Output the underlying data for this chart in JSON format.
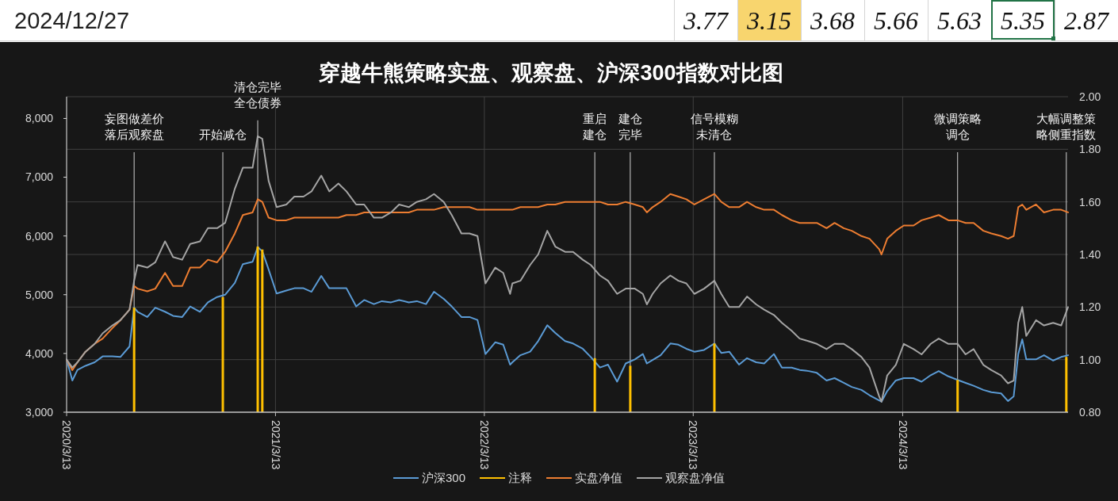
{
  "chart_data": [
    {
      "type": "other",
      "annotations": [
        "2024/12/27",
        "3.77",
        "3.15",
        "3.68",
        "5.66",
        "5.63",
        "5.35",
        "2.87"
      ]
    },
    {
      "type": "line",
      "title": "穿越牛熊策略实盘、观察盘、沪深300指数对比图",
      "x": [
        "2020-03-13",
        "2020-03-23",
        "2020-04-01",
        "2020-04-15",
        "2020-05-01",
        "2020-05-15",
        "2020-06-01",
        "2020-06-15",
        "2020-07-01",
        "2020-07-09",
        "2020-07-15",
        "2020-08-01",
        "2020-08-15",
        "2020-09-01",
        "2020-09-15",
        "2020-10-01",
        "2020-10-15",
        "2020-11-01",
        "2020-11-15",
        "2020-12-01",
        "2020-12-15",
        "2021-01-01",
        "2021-01-15",
        "2021-02-01",
        "2021-02-10",
        "2021-02-18",
        "2021-03-01",
        "2021-03-15",
        "2021-04-01",
        "2021-04-15",
        "2021-05-01",
        "2021-05-15",
        "2021-06-01",
        "2021-06-15",
        "2021-07-01",
        "2021-07-15",
        "2021-08-01",
        "2021-08-15",
        "2021-09-01",
        "2021-09-15",
        "2021-10-01",
        "2021-10-15",
        "2021-11-01",
        "2021-11-15",
        "2021-12-01",
        "2021-12-15",
        "2022-01-01",
        "2022-01-15",
        "2022-02-01",
        "2022-02-15",
        "2022-03-01",
        "2022-03-15",
        "2022-04-01",
        "2022-04-15",
        "2022-04-27",
        "2022-05-01",
        "2022-05-15",
        "2022-06-01",
        "2022-06-15",
        "2022-07-01",
        "2022-07-15",
        "2022-08-01",
        "2022-08-15",
        "2022-09-01",
        "2022-09-15",
        "2022-10-01",
        "2022-10-15",
        "2022-10-31",
        "2022-11-15",
        "2022-12-01",
        "2022-12-15",
        "2022-12-22",
        "2023-01-01",
        "2023-01-15",
        "2023-02-01",
        "2023-02-15",
        "2023-03-01",
        "2023-03-15",
        "2023-04-01",
        "2023-04-19",
        "2023-05-01",
        "2023-05-15",
        "2023-06-01",
        "2023-06-15",
        "2023-07-01",
        "2023-07-15",
        "2023-08-01",
        "2023-08-15",
        "2023-09-01",
        "2023-09-15",
        "2023-10-01",
        "2023-10-15",
        "2023-11-01",
        "2023-11-15",
        "2023-12-01",
        "2023-12-15",
        "2024-01-01",
        "2024-01-15",
        "2024-02-01",
        "2024-02-05",
        "2024-02-15",
        "2024-03-01",
        "2024-03-15",
        "2024-04-01",
        "2024-04-15",
        "2024-05-01",
        "2024-05-15",
        "2024-06-01",
        "2024-06-17",
        "2024-07-01",
        "2024-07-15",
        "2024-08-01",
        "2024-08-15",
        "2024-09-01",
        "2024-09-13",
        "2024-09-23",
        "2024-10-01",
        "2024-10-08",
        "2024-10-15",
        "2024-11-01",
        "2024-11-15",
        "2024-12-01",
        "2024-12-15",
        "2024-12-27"
      ],
      "xlim": [
        "2020-03-13",
        "2024-12-27"
      ],
      "xticks": [
        {
          "value": "2020-03-13",
          "label": "2020/3/13"
        },
        {
          "value": "2021-03-13",
          "label": "2021/3/13"
        },
        {
          "value": "2022-03-13",
          "label": "2022/3/13"
        },
        {
          "value": "2023-03-13",
          "label": "2023/3/13"
        },
        {
          "value": "2024-03-13",
          "label": "2024/3/13"
        }
      ],
      "ylim": [
        3000,
        8370
      ],
      "yticks": [
        {
          "value": 3000,
          "label": "3,000"
        },
        {
          "value": 4000,
          "label": "4,000"
        },
        {
          "value": 5000,
          "label": "5,000"
        },
        {
          "value": 6000,
          "label": "6,000"
        },
        {
          "value": 7000,
          "label": "7,000"
        },
        {
          "value": 8000,
          "label": "8,000"
        }
      ],
      "y2lim": [
        0.8,
        2.0
      ],
      "y2ticks": [
        {
          "value": 0.8,
          "label": "0.80"
        },
        {
          "value": 1,
          "label": "1.00"
        },
        {
          "value": 1.2,
          "label": "1.20"
        },
        {
          "value": 1.4,
          "label": "1.40"
        },
        {
          "value": 1.6,
          "label": "1.60"
        },
        {
          "value": 1.8,
          "label": "1.80"
        },
        {
          "value": 2,
          "label": "2.00"
        }
      ],
      "grid": true,
      "legend": "bottom",
      "series": [
        {
          "name": "沪深300",
          "color": "#5b9bd5",
          "values": [
            3900,
            3540,
            3720,
            3790,
            3850,
            3950,
            3950,
            3940,
            4120,
            4780,
            4710,
            4620,
            4780,
            4710,
            4640,
            4620,
            4800,
            4710,
            4870,
            4960,
            5000,
            5200,
            5520,
            5560,
            5810,
            5740,
            5430,
            5020,
            5070,
            5110,
            5110,
            5050,
            5320,
            5110,
            5110,
            5110,
            4800,
            4910,
            4840,
            4890,
            4870,
            4910,
            4870,
            4890,
            4840,
            5050,
            4930,
            4800,
            4620,
            4620,
            4570,
            3990,
            4190,
            4150,
            3810,
            3850,
            3970,
            4030,
            4210,
            4480,
            4350,
            4210,
            4170,
            4080,
            3940,
            3760,
            3810,
            3520,
            3830,
            3900,
            3990,
            3830,
            3890,
            3970,
            4170,
            4150,
            4080,
            4030,
            4060,
            4170,
            4010,
            4030,
            3810,
            3920,
            3850,
            3830,
            3990,
            3760,
            3760,
            3720,
            3700,
            3670,
            3540,
            3580,
            3500,
            3430,
            3380,
            3290,
            3200,
            3180,
            3360,
            3540,
            3580,
            3580,
            3520,
            3630,
            3700,
            3610,
            3550,
            3500,
            3450,
            3380,
            3340,
            3320,
            3190,
            3270,
            3990,
            4240,
            3900,
            3900,
            3970,
            3880,
            3940,
            3970
          ]
        },
        {
          "name": "注释",
          "color": "#ffc000",
          "type": "bar",
          "x": [
            "2020-07-09",
            "2020-12-11",
            "2021-02-10",
            "2021-02-18",
            "2022-09-22",
            "2022-11-23",
            "2023-04-19",
            "2024-06-17",
            "2024-12-24"
          ],
          "values": [
            4780,
            4960,
            5820,
            5770,
            3920,
            3790,
            4170,
            3550,
            3940
          ]
        },
        {
          "name": "实盘净值",
          "color": "#ed7d31",
          "axis": "y2",
          "values": [
            1.0,
            0.96,
            0.99,
            1.03,
            1.06,
            1.08,
            1.12,
            1.15,
            1.19,
            1.28,
            1.27,
            1.26,
            1.27,
            1.33,
            1.28,
            1.28,
            1.35,
            1.35,
            1.38,
            1.37,
            1.41,
            1.48,
            1.55,
            1.56,
            1.61,
            1.6,
            1.54,
            1.53,
            1.53,
            1.54,
            1.54,
            1.54,
            1.54,
            1.54,
            1.54,
            1.55,
            1.55,
            1.56,
            1.56,
            1.56,
            1.56,
            1.56,
            1.56,
            1.57,
            1.57,
            1.57,
            1.58,
            1.58,
            1.58,
            1.58,
            1.57,
            1.57,
            1.57,
            1.57,
            1.57,
            1.57,
            1.58,
            1.58,
            1.58,
            1.59,
            1.59,
            1.6,
            1.6,
            1.6,
            1.6,
            1.6,
            1.59,
            1.59,
            1.6,
            1.59,
            1.58,
            1.56,
            1.58,
            1.6,
            1.63,
            1.62,
            1.61,
            1.59,
            1.61,
            1.63,
            1.6,
            1.58,
            1.58,
            1.6,
            1.58,
            1.57,
            1.57,
            1.55,
            1.53,
            1.52,
            1.52,
            1.52,
            1.5,
            1.52,
            1.5,
            1.49,
            1.47,
            1.46,
            1.42,
            1.4,
            1.46,
            1.49,
            1.51,
            1.51,
            1.53,
            1.54,
            1.55,
            1.53,
            1.53,
            1.52,
            1.52,
            1.49,
            1.48,
            1.47,
            1.46,
            1.47,
            1.58,
            1.59,
            1.57,
            1.59,
            1.56,
            1.57,
            1.57,
            1.56
          ]
        },
        {
          "name": "观察盘净值",
          "color": "#a5a5a5",
          "axis": "y2",
          "values": [
            1.0,
            0.97,
            0.99,
            1.03,
            1.06,
            1.1,
            1.13,
            1.15,
            1.19,
            1.3,
            1.36,
            1.35,
            1.37,
            1.45,
            1.39,
            1.38,
            1.44,
            1.45,
            1.5,
            1.5,
            1.52,
            1.65,
            1.73,
            1.73,
            1.85,
            1.84,
            1.68,
            1.58,
            1.59,
            1.62,
            1.62,
            1.64,
            1.7,
            1.64,
            1.67,
            1.64,
            1.59,
            1.59,
            1.54,
            1.54,
            1.56,
            1.59,
            1.58,
            1.6,
            1.61,
            1.63,
            1.6,
            1.55,
            1.48,
            1.48,
            1.47,
            1.29,
            1.35,
            1.33,
            1.25,
            1.29,
            1.3,
            1.36,
            1.4,
            1.49,
            1.43,
            1.41,
            1.41,
            1.38,
            1.36,
            1.32,
            1.3,
            1.25,
            1.27,
            1.27,
            1.25,
            1.21,
            1.25,
            1.29,
            1.32,
            1.3,
            1.29,
            1.25,
            1.27,
            1.3,
            1.25,
            1.2,
            1.2,
            1.24,
            1.21,
            1.19,
            1.17,
            1.14,
            1.11,
            1.08,
            1.07,
            1.06,
            1.04,
            1.06,
            1.06,
            1.04,
            1.01,
            0.97,
            0.86,
            0.84,
            0.94,
            0.98,
            1.06,
            1.04,
            1.02,
            1.06,
            1.08,
            1.06,
            1.06,
            1.02,
            1.04,
            0.98,
            0.96,
            0.94,
            0.91,
            0.92,
            1.14,
            1.2,
            1.09,
            1.15,
            1.13,
            1.14,
            1.13,
            1.2
          ]
        }
      ],
      "ref_lines": [
        {
          "axis": "x",
          "value": "2020-07-09",
          "label": "妄图做差价落后观察盘",
          "color": "#d0d0d0"
        },
        {
          "axis": "x",
          "value": "2020-12-11",
          "label": "开始减仓",
          "color": "#d0d0d0"
        },
        {
          "axis": "x",
          "value": "2021-02-10",
          "label": "清仓完毕全仓债券",
          "color": "#d0d0d0"
        },
        {
          "axis": "x",
          "value": "2022-09-22",
          "label": "重启建仓",
          "color": "#d0d0d0"
        },
        {
          "axis": "x",
          "value": "2022-11-23",
          "label": "建仓完毕",
          "color": "#d0d0d0"
        },
        {
          "axis": "x",
          "value": "2023-04-19",
          "label": "信号模糊未清仓",
          "color": "#d0d0d0"
        },
        {
          "axis": "x",
          "value": "2024-06-17",
          "label": "微调策略调仓",
          "color": "#d0d0d0"
        },
        {
          "axis": "x",
          "value": "2024-12-24",
          "label": "大幅调整策略侧重指数",
          "color": "#d0d0d0"
        }
      ]
    }
  ]
}
